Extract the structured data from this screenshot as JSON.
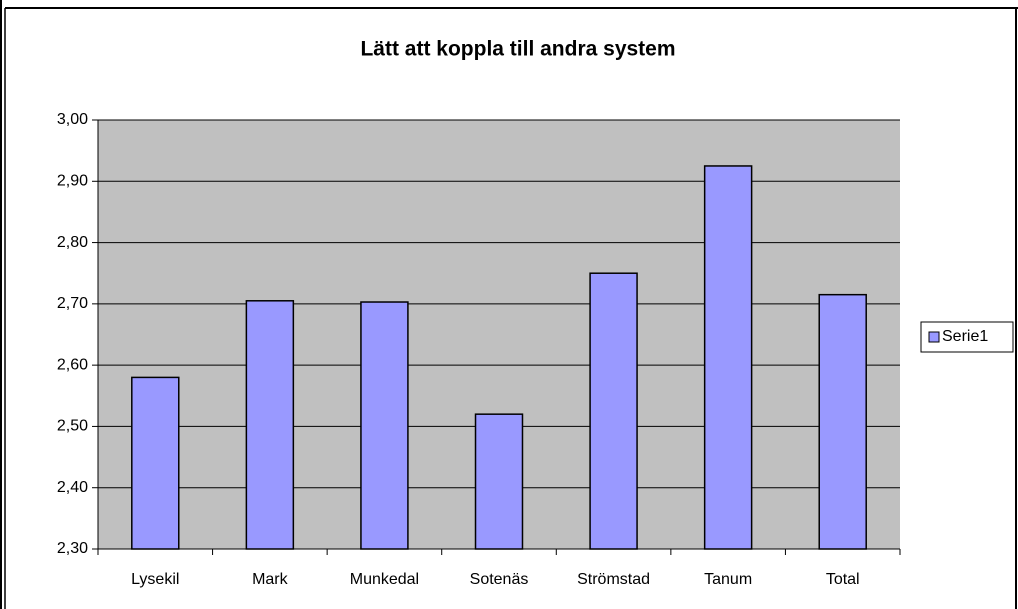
{
  "chart_data": {
    "type": "bar",
    "title": "Lätt att koppla till andra system",
    "categories": [
      "Lysekil",
      "Mark",
      "Munkedal",
      "Sotenäs",
      "Strömstad",
      "Tanum",
      "Total"
    ],
    "series": [
      {
        "name": "Serie1",
        "color": "#9999ff",
        "values": [
          2.58,
          2.705,
          2.703,
          2.52,
          2.75,
          2.925,
          2.715
        ]
      }
    ],
    "ylim": [
      2.3,
      3.0
    ],
    "yticks": [
      {
        "value": 2.3,
        "label": "2,30"
      },
      {
        "value": 2.4,
        "label": "2,40"
      },
      {
        "value": 2.5,
        "label": "2,50"
      },
      {
        "value": 2.6,
        "label": "2,60"
      },
      {
        "value": 2.7,
        "label": "2,70"
      },
      {
        "value": 2.8,
        "label": "2,80"
      },
      {
        "value": 2.9,
        "label": "2,90"
      },
      {
        "value": 3.0,
        "label": "3,00"
      }
    ],
    "grid": true,
    "legend": "right",
    "plot_background": "#c0c0c0"
  }
}
